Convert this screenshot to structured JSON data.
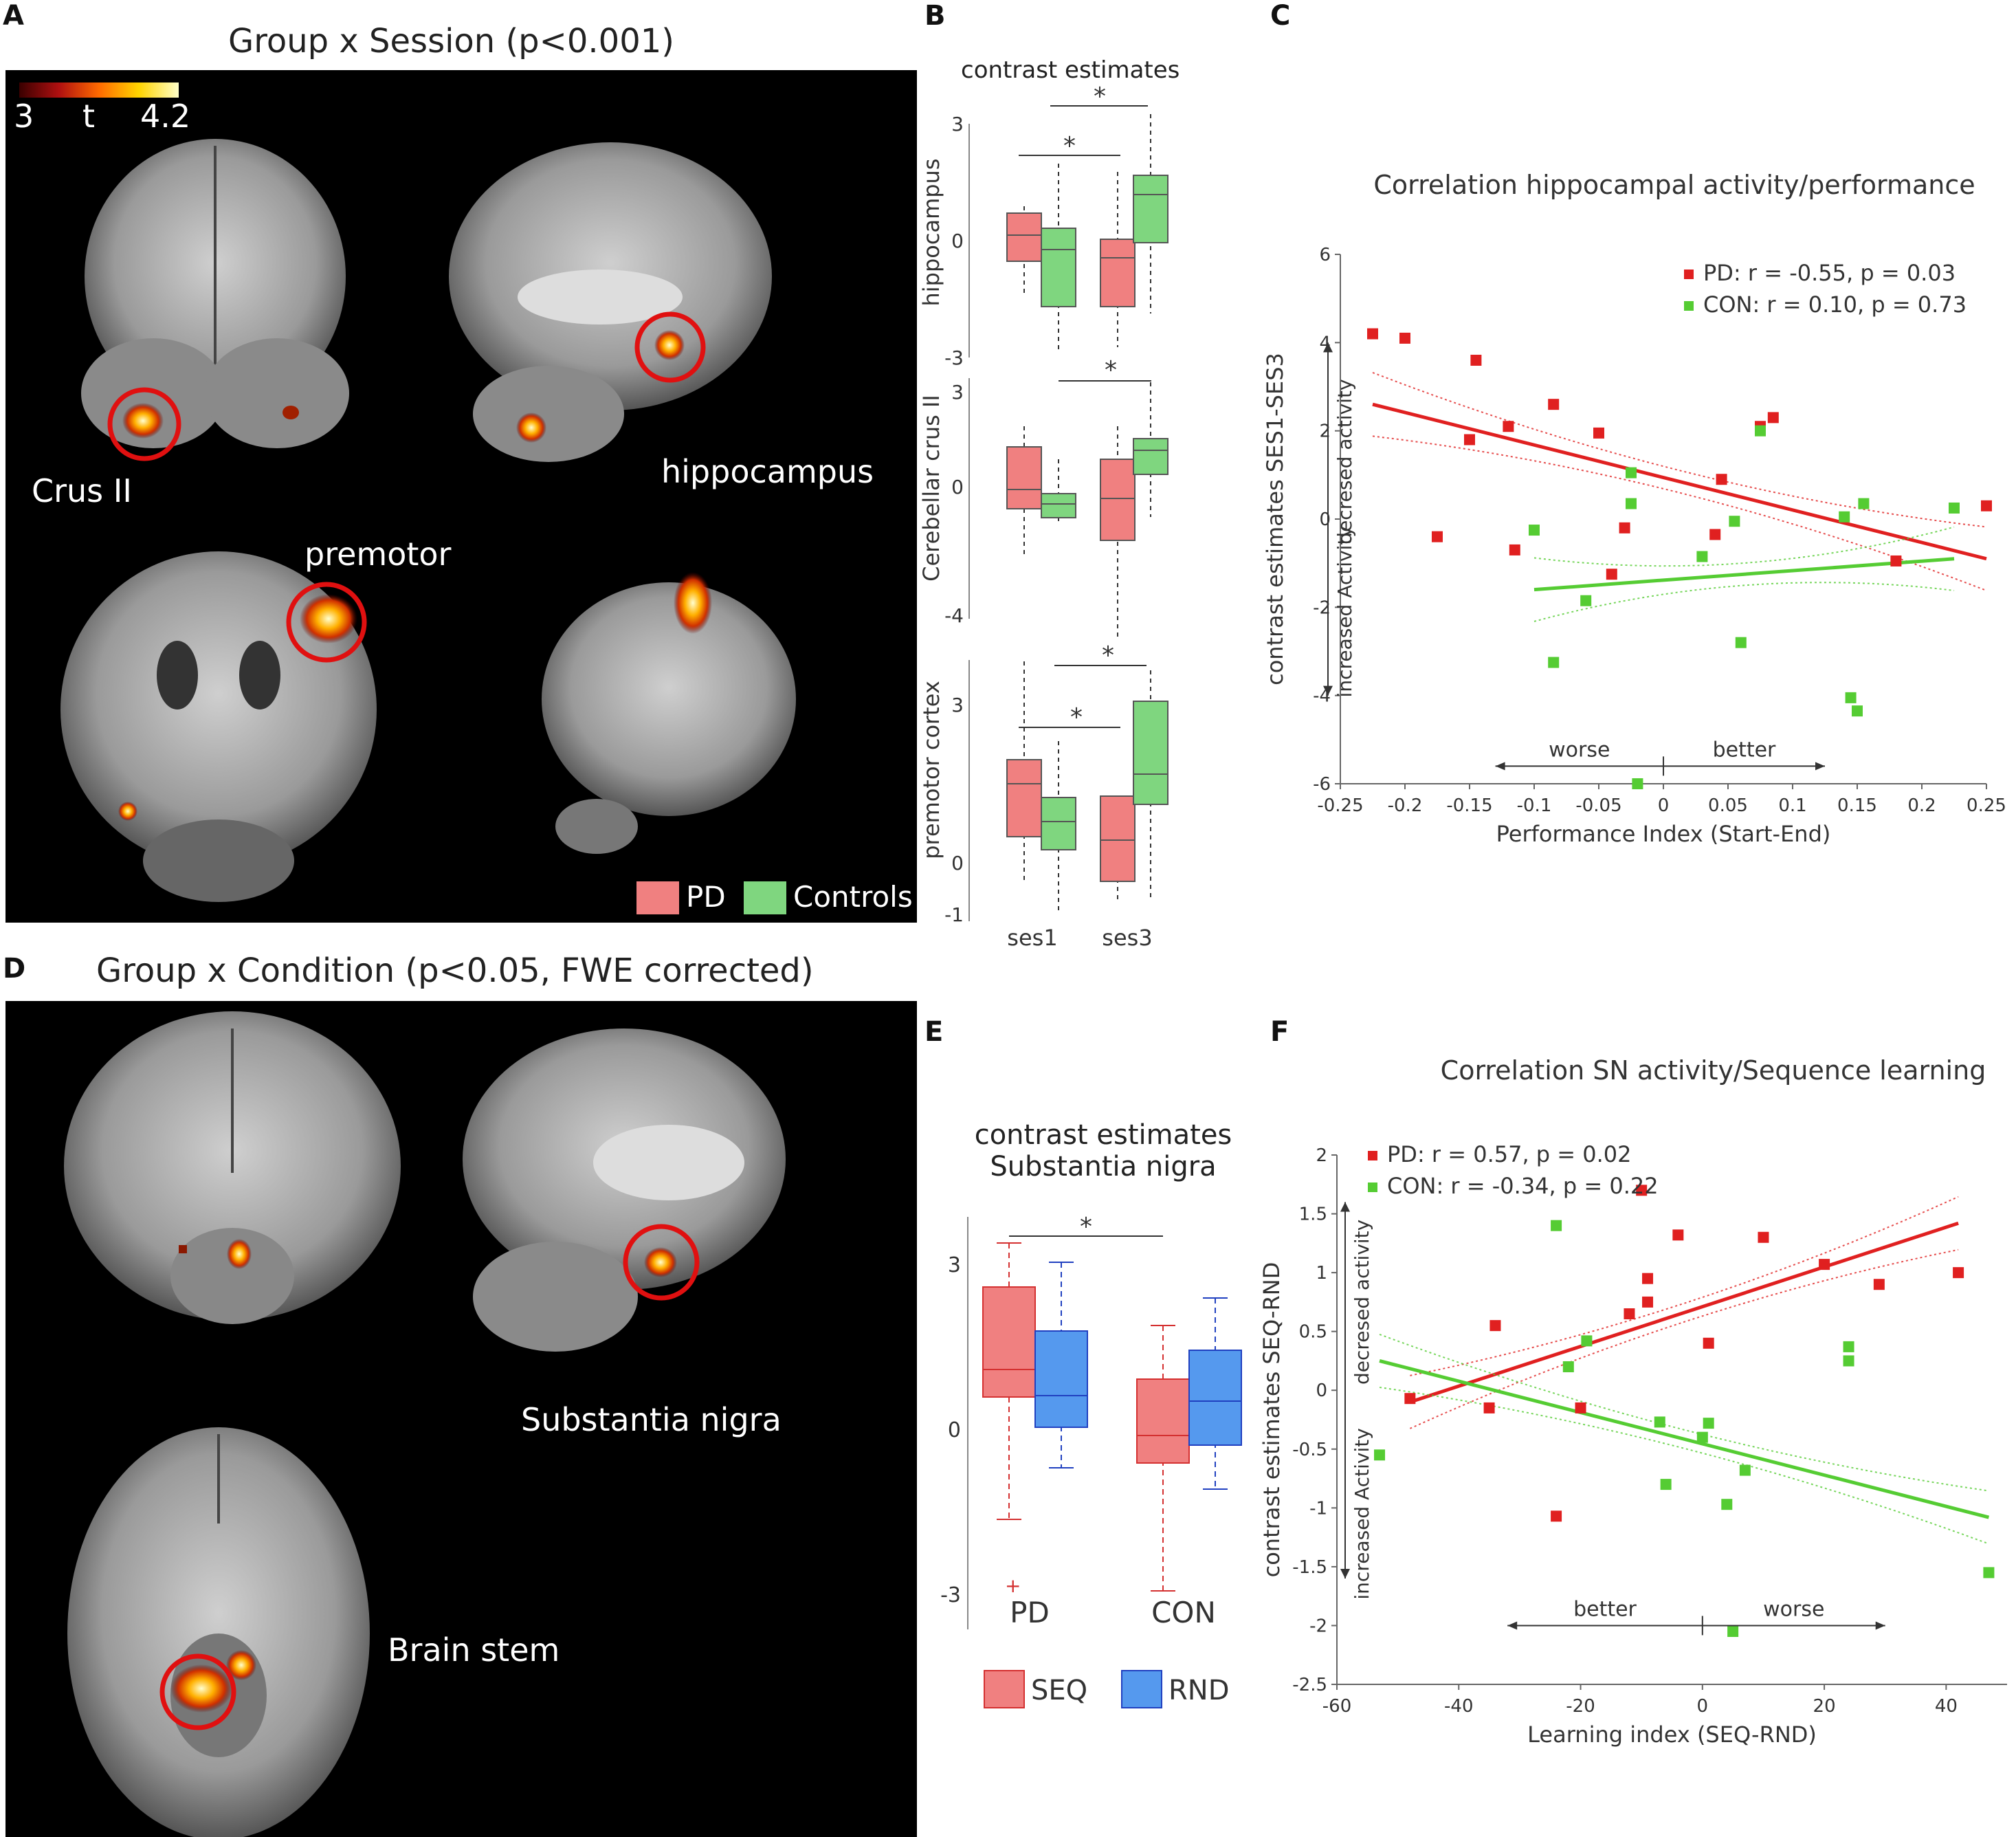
{
  "panelA": {
    "letter": "A",
    "title": "Group x Session (p<0.001)",
    "colorbar": {
      "min": "3",
      "mid": "t",
      "max": "4.2"
    },
    "labels": {
      "crus": "Crus II",
      "hippocampus": "hippocampus",
      "premotor": "premotor"
    },
    "legend": {
      "pd": "PD",
      "controls": "Controls",
      "pd_color": "#f08080",
      "con_color": "#7fd67f"
    }
  },
  "panelB": {
    "letter": "B",
    "title": "contrast estimates",
    "ylabels": [
      "hippocampus",
      "Cerebellar crus II",
      "premotor cortex"
    ],
    "sessions": [
      "ses1",
      "ses3"
    ],
    "ticks_hip": [
      "3",
      "0",
      "-3"
    ],
    "ticks_cer": [
      "3",
      "0",
      "-4"
    ],
    "ticks_pre": [
      "3",
      "0",
      "-1"
    ],
    "star": "*"
  },
  "panelC": {
    "letter": "C",
    "chart_data": {
      "type": "scatter",
      "title": "Correlation hippocampal activity/performance",
      "xlabel": "Performance Index (Start-End)",
      "ylabel": "contrast estimates SES1-SES3",
      "xlim": [
        -0.25,
        0.25
      ],
      "ylim": [
        -6,
        6
      ],
      "xticks": [
        "-0.25",
        "-0.2",
        "-0.15",
        "-0.1",
        "-0.05",
        "0",
        "0.05",
        "0.1",
        "0.15",
        "0.2",
        "0.25"
      ],
      "yticks": [
        "6",
        "4",
        "2",
        "0",
        "-2",
        "-4",
        "-6"
      ],
      "legend": [
        "PD: r = -0.55, p = 0.03",
        "CON: r = 0.10, p = 0.73"
      ],
      "annotations": {
        "decreased": "decresed activity",
        "increased": "increased Activity",
        "worse": "worse",
        "better": "better"
      },
      "series": [
        {
          "name": "PD",
          "color": "#e02020",
          "x": [
            -0.225,
            -0.2,
            -0.175,
            -0.145,
            -0.15,
            -0.12,
            -0.115,
            -0.085,
            -0.05,
            -0.03,
            -0.04,
            0.045,
            0.04,
            0.075,
            0.085,
            0.18,
            0.25
          ],
          "y": [
            4.2,
            4.1,
            -0.4,
            3.6,
            1.8,
            2.1,
            -0.7,
            2.6,
            1.95,
            -0.2,
            -1.25,
            0.9,
            -0.35,
            2.1,
            2.3,
            -0.95,
            0.3
          ]
        },
        {
          "name": "CON",
          "color": "#55cc33",
          "x": [
            -0.1,
            -0.085,
            -0.06,
            -0.025,
            -0.025,
            -0.02,
            0.03,
            0.055,
            0.06,
            0.075,
            0.14,
            0.145,
            0.15,
            0.155,
            0.225
          ],
          "y": [
            -0.25,
            -3.25,
            -1.85,
            1.05,
            0.35,
            -6.0,
            -0.85,
            -0.05,
            -2.8,
            2.0,
            0.05,
            -4.05,
            -4.35,
            0.35,
            0.25
          ]
        }
      ],
      "fits": [
        {
          "name": "PD",
          "x": [
            -0.225,
            0.25
          ],
          "y": [
            2.6,
            -0.9
          ]
        },
        {
          "name": "CON",
          "x": [
            -0.1,
            0.225
          ],
          "y": [
            -1.6,
            -0.9
          ]
        }
      ]
    }
  },
  "panelD": {
    "letter": "D",
    "title": "Group x Condition (p<0.05, FWE corrected)",
    "labels": {
      "sn": "Substantia nigra",
      "brainstem": "Brain stem"
    }
  },
  "panelE": {
    "letter": "E",
    "title_line1": "contrast estimates",
    "title_line2": "Substantia nigra",
    "groups": [
      "PD",
      "CON"
    ],
    "yticks": [
      "3",
      "0",
      "-3"
    ],
    "legend": {
      "seq": "SEQ",
      "rnd": "RND",
      "seq_color": "#f08080",
      "rnd_color": "#5599ee"
    },
    "star": "*"
  },
  "panelF": {
    "letter": "F",
    "chart_data": {
      "type": "scatter",
      "title": "Correlation SN activity/Sequence learning",
      "xlabel": "Learning index (SEQ-RND)",
      "ylabel": "contrast estimates SEQ-RND",
      "xlim": [
        -60,
        50
      ],
      "ylim": [
        -2.5,
        2
      ],
      "xticks": [
        "-60",
        "-40",
        "-20",
        "0",
        "20",
        "40"
      ],
      "yticks": [
        "2",
        "1.5",
        "1",
        "0.5",
        "0",
        "-0.5",
        "-1",
        "-1.5",
        "-2",
        "-2.5"
      ],
      "legend": [
        "PD: r = 0.57, p = 0.02",
        "CON: r = -0.34, p = 0.22"
      ],
      "annotations": {
        "decreased": "decresed activity",
        "increased": "increased Activity",
        "better": "better",
        "worse": "worse"
      },
      "series": [
        {
          "name": "PD",
          "color": "#e02020",
          "x": [
            -48,
            -34,
            -35,
            -24,
            -20,
            -12,
            -9,
            -10,
            -9,
            -4,
            1,
            10,
            20,
            29,
            42
          ],
          "y": [
            -0.07,
            0.55,
            -0.15,
            -1.07,
            -0.15,
            0.65,
            0.75,
            1.7,
            0.95,
            1.32,
            0.4,
            1.3,
            1.07,
            0.9,
            1.0
          ]
        },
        {
          "name": "CON",
          "color": "#55cc33",
          "x": [
            -53,
            -24,
            -22,
            -19,
            -7,
            -6,
            0,
            1,
            4,
            5,
            7,
            24,
            24,
            47
          ],
          "y": [
            -0.55,
            1.4,
            0.2,
            0.42,
            -0.27,
            -0.8,
            -0.4,
            -0.28,
            -0.97,
            -2.05,
            -0.68,
            0.37,
            0.25,
            -1.55
          ]
        }
      ],
      "fits": [
        {
          "name": "PD",
          "x": [
            -48,
            42
          ],
          "y": [
            -0.1,
            1.42
          ]
        },
        {
          "name": "CON",
          "x": [
            -53,
            47
          ],
          "y": [
            0.25,
            -1.08
          ]
        }
      ]
    }
  }
}
